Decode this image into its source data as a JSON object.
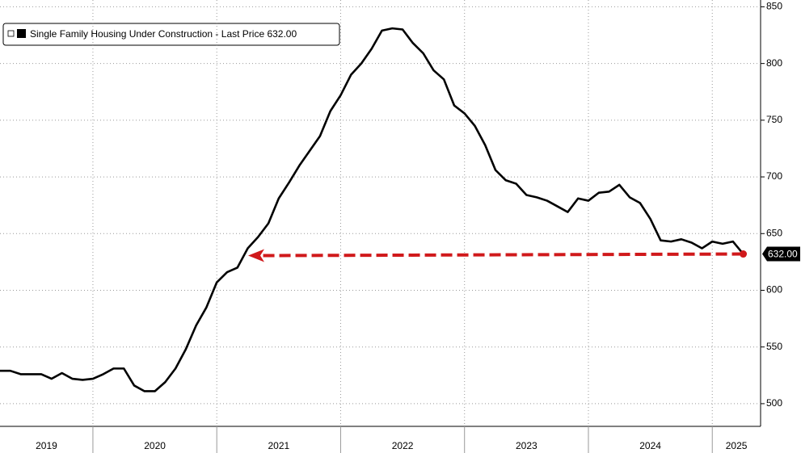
{
  "chart_data": {
    "type": "line",
    "legend_label": "Single Family Housing Under Construction - Last Price 632.00",
    "x": [
      2019.25,
      2019.3333,
      2019.4167,
      2019.5,
      2019.5833,
      2019.6667,
      2019.75,
      2019.8333,
      2019.9167,
      2020.0,
      2020.0833,
      2020.1667,
      2020.25,
      2020.3333,
      2020.4167,
      2020.5,
      2020.5833,
      2020.6667,
      2020.75,
      2020.8333,
      2020.9167,
      2021.0,
      2021.0833,
      2021.1667,
      2021.25,
      2021.3333,
      2021.4167,
      2021.5,
      2021.5833,
      2021.6667,
      2021.75,
      2021.8333,
      2021.9167,
      2022.0,
      2022.0833,
      2022.1667,
      2022.25,
      2022.3333,
      2022.4167,
      2022.5,
      2022.5833,
      2022.6667,
      2022.75,
      2022.8333,
      2022.9167,
      2023.0,
      2023.0833,
      2023.1667,
      2023.25,
      2023.3333,
      2023.4167,
      2023.5,
      2023.5833,
      2023.6667,
      2023.75,
      2023.8333,
      2023.9167,
      2024.0,
      2024.0833,
      2024.1667,
      2024.25,
      2024.3333,
      2024.4167,
      2024.5,
      2024.5833,
      2024.6667,
      2024.75,
      2024.8333,
      2024.9167,
      2025.0,
      2025.0833,
      2025.1667,
      2025.25
    ],
    "series": [
      {
        "name": "Single Family Housing Under Construction",
        "color": "#000000",
        "values": [
          529,
          529,
          526,
          526,
          526,
          522,
          527,
          522,
          521,
          522,
          526,
          531,
          531,
          516,
          511,
          511,
          519,
          531,
          548,
          569,
          585,
          607,
          616,
          620,
          637,
          647,
          659,
          681,
          695,
          710,
          723,
          736,
          758,
          772,
          790,
          800,
          813,
          829,
          831,
          830,
          818,
          809,
          794,
          786,
          763,
          756,
          745,
          728,
          706,
          697,
          694,
          684,
          682,
          679,
          674,
          669,
          681,
          679,
          686,
          687,
          693,
          682,
          677,
          663,
          644,
          643,
          645,
          642,
          637,
          643,
          641,
          643,
          632
        ]
      }
    ],
    "last_value": {
      "value": 632,
      "label": "632.00"
    },
    "xlim": [
      2019.25,
      2025.39
    ],
    "xticks": [
      2019,
      2020,
      2021,
      2022,
      2023,
      2024,
      2025
    ],
    "ylim": [
      480,
      856
    ],
    "yticks": [
      500,
      550,
      600,
      650,
      700,
      750,
      800,
      850
    ],
    "grid": true
  }
}
